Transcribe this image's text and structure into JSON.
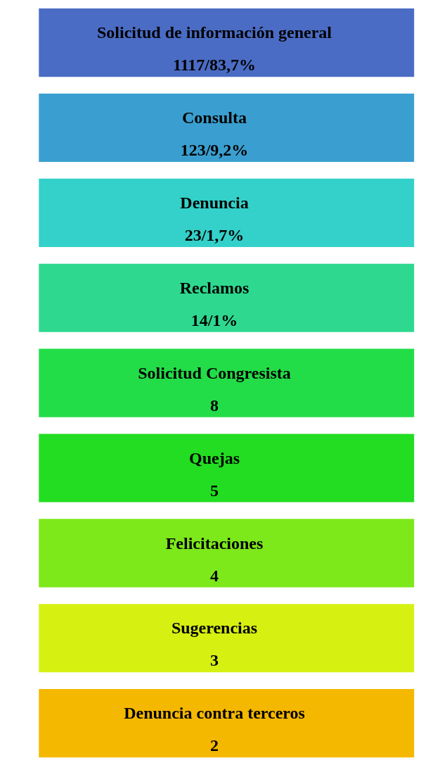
{
  "chart_data": {
    "type": "other",
    "categories": [
      "Solicitud de información general",
      "Consulta",
      "Denuncia",
      "Reclamos",
      "Solicitud Congresista",
      "Quejas",
      "Felicitaciones",
      "Sugerencias",
      "Denuncia contra terceros"
    ],
    "values": [
      1117,
      123,
      23,
      14,
      8,
      5,
      4,
      3,
      2
    ],
    "value_labels": [
      "1117/83,7%",
      "123/9,2%",
      "23/1,7%",
      "14/1%",
      "8",
      "5",
      "4",
      "3",
      "2"
    ],
    "colors": [
      "#4a6cc4",
      "#3a9fd0",
      "#33d1c9",
      "#2ed98f",
      "#22dd48",
      "#22dd22",
      "#7de81a",
      "#d6f011",
      "#f5b800"
    ]
  }
}
